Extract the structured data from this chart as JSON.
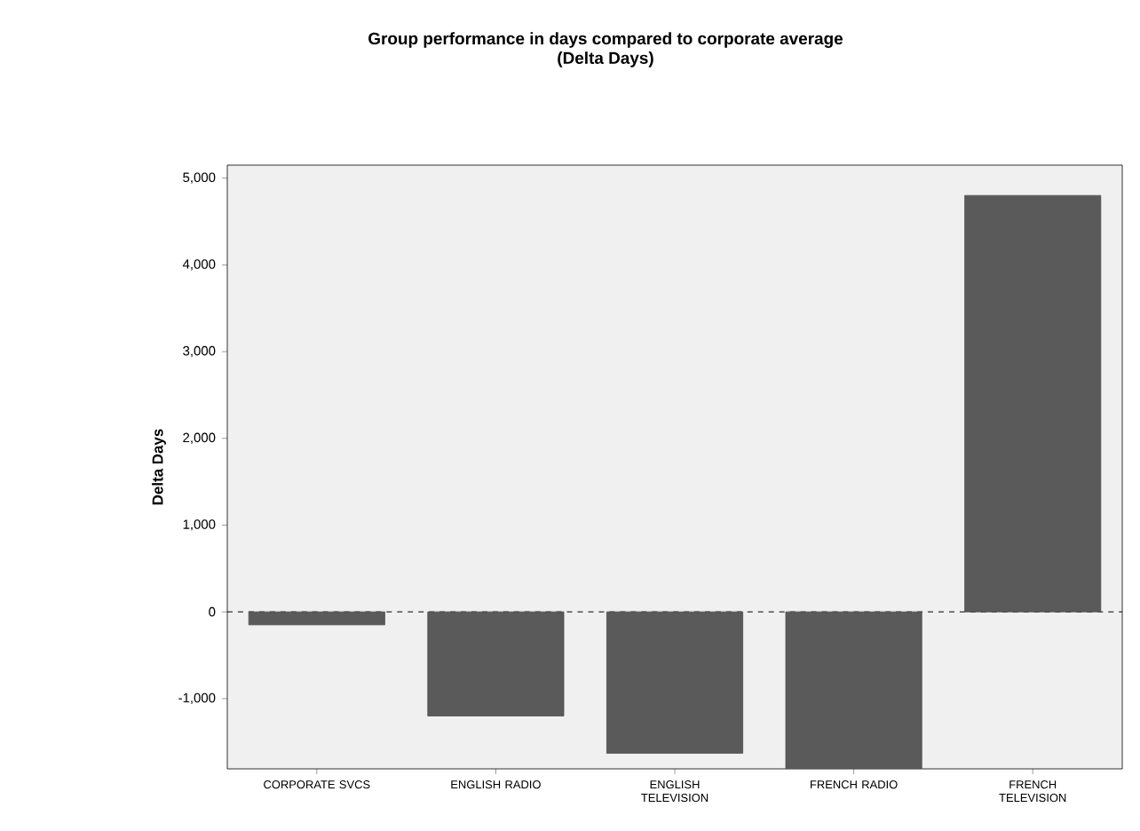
{
  "chart_data": {
    "type": "bar",
    "title": "Group performance in days compared to corporate average",
    "subtitle": "(Delta Days)",
    "ylabel": "Delta Days",
    "categories": [
      "CORPORATE SVCS",
      "ENGLISH RADIO",
      "ENGLISH TELEVISION",
      "FRENCH RADIO",
      "FRENCH TELEVISION"
    ],
    "values": [
      -150,
      -1200,
      -1630,
      -1810,
      4800
    ],
    "color": "#5a5a5a",
    "ylim": [
      -1810,
      5150
    ],
    "yticks": [
      {
        "value": -1000,
        "label": "-1,000"
      },
      0,
      {
        "value": 1000,
        "label": "1,000"
      },
      {
        "value": 2000,
        "label": "2,000"
      },
      {
        "value": 3000,
        "label": "3,000"
      },
      {
        "value": 4000,
        "label": "4,000"
      },
      {
        "value": 5000,
        "label": "5,000"
      }
    ],
    "ref_lines": [
      {
        "axis": "y",
        "value": 0,
        "line_style": "dashed"
      }
    ],
    "grid": false
  }
}
